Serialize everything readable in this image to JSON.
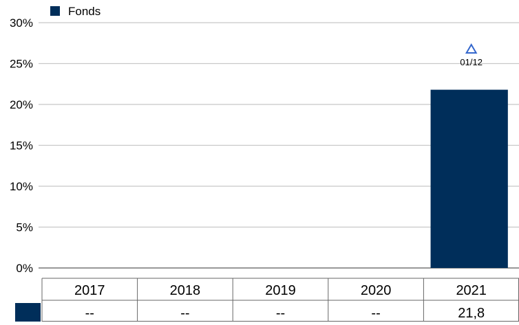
{
  "chart_data": {
    "type": "bar",
    "categories": [
      "2017",
      "2018",
      "2019",
      "2020",
      "2021"
    ],
    "series": [
      {
        "name": "Fonds",
        "values": [
          null,
          null,
          null,
          null,
          21.8
        ],
        "color": "#002e5a"
      }
    ],
    "ylim": [
      0,
      30
    ],
    "yticks": [
      0,
      5,
      10,
      15,
      20,
      25,
      30
    ],
    "ytick_labels": [
      "0%",
      "5%",
      "10%",
      "15%",
      "20%",
      "25%",
      "30%"
    ],
    "grid": true,
    "legend": {
      "position": "top-left"
    },
    "annotations": [
      {
        "category": "2021",
        "icon": "triangle-up-outline-icon",
        "text": "01/12",
        "color": "#3366cc"
      }
    ],
    "data_table": {
      "row_values": [
        "--",
        "--",
        "--",
        "--",
        "21,8"
      ]
    }
  }
}
